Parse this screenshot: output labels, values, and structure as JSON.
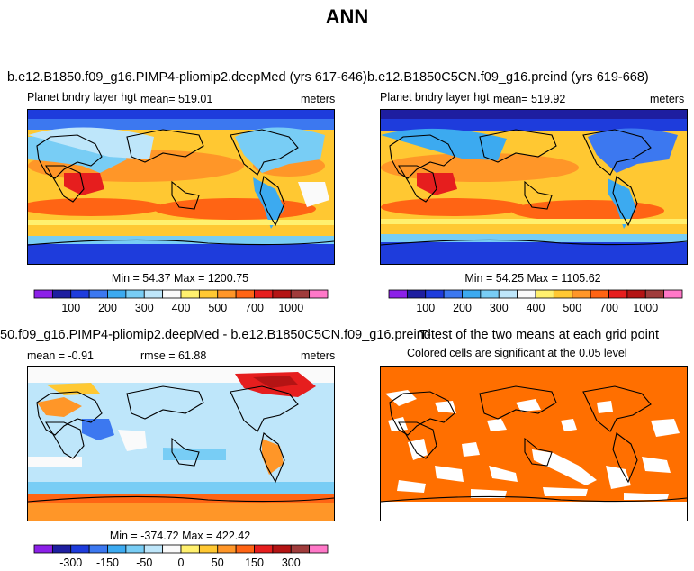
{
  "page_title": "ANN",
  "colorbar_colors": [
    "#8c20e8",
    "#1e1ea0",
    "#1e3cdc",
    "#3c78f0",
    "#3caaf0",
    "#78cdf5",
    "#bee6fa",
    "#fafafa",
    "#fff06e",
    "#ffc832",
    "#ff9628",
    "#ff6414",
    "#e61e1e",
    "#b41414",
    "#a03c3c",
    "#ff78c8"
  ],
  "panels": [
    {
      "id": "top-left",
      "title": "b.e12.B1850.f09_g16.PIMP4-pliomip2.deepMed (yrs 617-646)",
      "left_label": "Planet bndry layer hgt",
      "center_label": "mean= 519.01",
      "right_label": "meters",
      "stats": "Min =  54.37 Max = 1200.75",
      "colorbar_ticks": [
        "100",
        "200",
        "300",
        "400",
        "500",
        "700",
        "1000"
      ]
    },
    {
      "id": "top-right",
      "title": "b.e12.B1850C5CN.f09_g16.preind (yrs 619-668)",
      "left_label": "Planet bndry layer hgt",
      "center_label": "mean= 519.92",
      "right_label": "meters",
      "stats": "Min =  54.25 Max = 1105.62",
      "colorbar_ticks": [
        "100",
        "200",
        "300",
        "400",
        "500",
        "700",
        "1000"
      ]
    },
    {
      "id": "bottom-left",
      "title": "50.f09_g16.PIMP4-pliomip2.deepMed - b.e12.B1850C5CN.f09_g16.preind",
      "left_label": "mean =  -0.91",
      "center_label": "rmse =  61.88",
      "right_label": "meters",
      "stats": "Min = -374.72 Max = 422.42",
      "colorbar_ticks": [
        "-300",
        "-150",
        "-50",
        "0",
        "50",
        "150",
        "300"
      ]
    },
    {
      "id": "bottom-right",
      "title": "T-test of the two means at each grid point",
      "subtitle": "Colored cells are significant at the 0.05 level"
    }
  ],
  "chart_data": [
    {
      "type": "heatmap",
      "title": "b.e12.B1850.f09_g16.PIMP4-pliomip2.deepMed (yrs 617-646)",
      "variable": "Planet bndry layer hgt",
      "units": "meters",
      "mean": 519.01,
      "min": 54.37,
      "max": 1200.75,
      "colorbar_ticks": [
        100,
        200,
        300,
        400,
        500,
        700,
        1000
      ]
    },
    {
      "type": "heatmap",
      "title": "b.e12.B1850C5CN.f09_g16.preind (yrs 619-668)",
      "variable": "Planet bndry layer hgt",
      "units": "meters",
      "mean": 519.92,
      "min": 54.25,
      "max": 1105.62,
      "colorbar_ticks": [
        100,
        200,
        300,
        400,
        500,
        700,
        1000
      ]
    },
    {
      "type": "heatmap",
      "title": "50.f09_g16.PIMP4-pliomip2.deepMed - b.e12.B1850C5CN.f09_g16.preind",
      "units": "meters",
      "mean": -0.91,
      "rmse": 61.88,
      "min": -374.72,
      "max": 422.42,
      "colorbar_ticks": [
        -300,
        -150,
        -50,
        0,
        50,
        150,
        300
      ]
    },
    {
      "type": "heatmap",
      "title": "T-test of the two means at each grid point",
      "subtitle": "Colored cells are significant at the 0.05 level"
    }
  ]
}
